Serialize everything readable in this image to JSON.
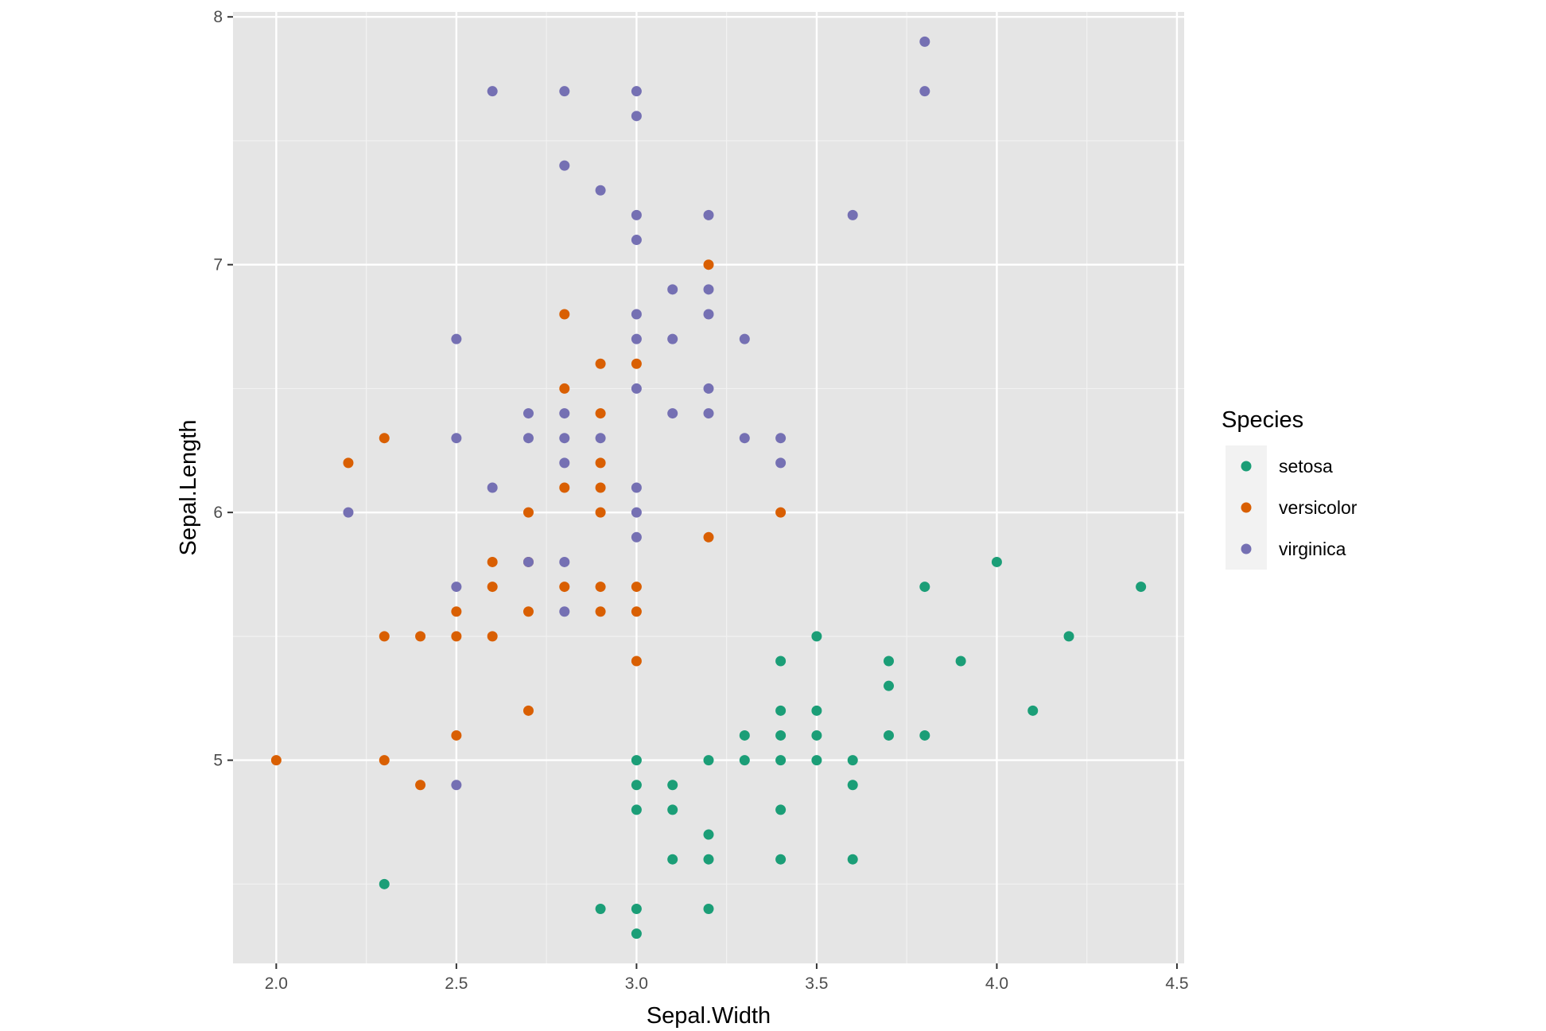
{
  "chart_data": {
    "type": "scatter",
    "xlabel": "Sepal.Width",
    "ylabel": "Sepal.Length",
    "xlim": [
      1.88,
      4.52
    ],
    "ylim": [
      4.18,
      8.02
    ],
    "x_ticks": [
      2.0,
      2.5,
      3.0,
      3.5,
      4.0,
      4.5
    ],
    "x_tick_labels": [
      "2.0",
      "2.5",
      "3.0",
      "3.5",
      "4.0",
      "4.5"
    ],
    "y_ticks": [
      5,
      6,
      7,
      8
    ],
    "y_tick_labels": [
      "5",
      "6",
      "7",
      "8"
    ],
    "grid": true,
    "legend": {
      "title": "Species",
      "placement": "right"
    },
    "series": [
      {
        "name": "setosa",
        "color": "#1b9e77",
        "points": [
          [
            2.3,
            4.5
          ],
          [
            2.9,
            4.4
          ],
          [
            3.0,
            4.4
          ],
          [
            3.0,
            4.3
          ],
          [
            3.2,
            4.4
          ],
          [
            3.0,
            5.0
          ],
          [
            3.0,
            4.9
          ],
          [
            3.0,
            4.8
          ],
          [
            3.1,
            4.9
          ],
          [
            3.1,
            4.8
          ],
          [
            3.1,
            4.6
          ],
          [
            3.2,
            4.7
          ],
          [
            3.2,
            4.6
          ],
          [
            3.2,
            5.0
          ],
          [
            3.3,
            5.1
          ],
          [
            3.3,
            5.0
          ],
          [
            3.4,
            5.4
          ],
          [
            3.4,
            5.2
          ],
          [
            3.4,
            5.1
          ],
          [
            3.4,
            5.0
          ],
          [
            3.4,
            4.8
          ],
          [
            3.4,
            4.6
          ],
          [
            3.5,
            5.5
          ],
          [
            3.5,
            5.2
          ],
          [
            3.5,
            5.1
          ],
          [
            3.5,
            5.0
          ],
          [
            3.6,
            5.0
          ],
          [
            3.6,
            4.9
          ],
          [
            3.6,
            4.6
          ],
          [
            3.7,
            5.4
          ],
          [
            3.7,
            5.3
          ],
          [
            3.7,
            5.1
          ],
          [
            3.8,
            5.7
          ],
          [
            3.8,
            5.1
          ],
          [
            3.9,
            5.4
          ],
          [
            4.0,
            5.8
          ],
          [
            4.1,
            5.2
          ],
          [
            4.2,
            5.5
          ],
          [
            4.4,
            5.7
          ]
        ]
      },
      {
        "name": "versicolor",
        "color": "#d95f02",
        "points": [
          [
            2.0,
            5.0
          ],
          [
            2.2,
            6.2
          ],
          [
            2.3,
            6.3
          ],
          [
            2.3,
            5.5
          ],
          [
            2.3,
            5.0
          ],
          [
            2.4,
            5.5
          ],
          [
            2.4,
            4.9
          ],
          [
            2.5,
            5.6
          ],
          [
            2.5,
            5.5
          ],
          [
            2.5,
            5.1
          ],
          [
            2.6,
            5.8
          ],
          [
            2.6,
            5.7
          ],
          [
            2.6,
            5.5
          ],
          [
            2.7,
            6.0
          ],
          [
            2.7,
            5.8
          ],
          [
            2.7,
            5.6
          ],
          [
            2.7,
            5.2
          ],
          [
            2.8,
            6.8
          ],
          [
            2.8,
            6.5
          ],
          [
            2.8,
            6.1
          ],
          [
            2.8,
            5.7
          ],
          [
            2.9,
            6.6
          ],
          [
            2.9,
            6.4
          ],
          [
            2.9,
            6.2
          ],
          [
            2.9,
            6.1
          ],
          [
            2.9,
            6.0
          ],
          [
            2.9,
            5.7
          ],
          [
            2.9,
            5.6
          ],
          [
            3.0,
            6.6
          ],
          [
            3.0,
            5.7
          ],
          [
            3.0,
            5.6
          ],
          [
            3.0,
            5.4
          ],
          [
            3.2,
            7.0
          ],
          [
            3.2,
            5.9
          ],
          [
            3.4,
            6.0
          ]
        ]
      },
      {
        "name": "virginica",
        "color": "#7570b3",
        "points": [
          [
            2.2,
            6.0
          ],
          [
            2.5,
            6.7
          ],
          [
            2.5,
            6.3
          ],
          [
            2.5,
            5.7
          ],
          [
            2.5,
            4.9
          ],
          [
            2.6,
            7.7
          ],
          [
            2.6,
            6.1
          ],
          [
            2.7,
            6.4
          ],
          [
            2.7,
            6.3
          ],
          [
            2.7,
            5.8
          ],
          [
            2.8,
            7.7
          ],
          [
            2.8,
            7.4
          ],
          [
            2.8,
            6.4
          ],
          [
            2.8,
            6.3
          ],
          [
            2.8,
            6.2
          ],
          [
            2.8,
            5.8
          ],
          [
            2.8,
            5.6
          ],
          [
            2.9,
            7.3
          ],
          [
            2.9,
            6.3
          ],
          [
            3.0,
            7.7
          ],
          [
            3.0,
            7.6
          ],
          [
            3.0,
            7.2
          ],
          [
            3.0,
            7.1
          ],
          [
            3.0,
            6.8
          ],
          [
            3.0,
            6.7
          ],
          [
            3.0,
            6.5
          ],
          [
            3.0,
            6.1
          ],
          [
            3.0,
            6.0
          ],
          [
            3.0,
            5.9
          ],
          [
            3.1,
            6.9
          ],
          [
            3.1,
            6.7
          ],
          [
            3.1,
            6.4
          ],
          [
            3.2,
            7.2
          ],
          [
            3.2,
            6.9
          ],
          [
            3.2,
            6.8
          ],
          [
            3.2,
            6.5
          ],
          [
            3.2,
            6.4
          ],
          [
            3.3,
            6.7
          ],
          [
            3.3,
            6.3
          ],
          [
            3.4,
            6.3
          ],
          [
            3.4,
            6.2
          ],
          [
            3.6,
            7.2
          ],
          [
            3.8,
            7.9
          ],
          [
            3.8,
            7.7
          ]
        ]
      }
    ]
  }
}
